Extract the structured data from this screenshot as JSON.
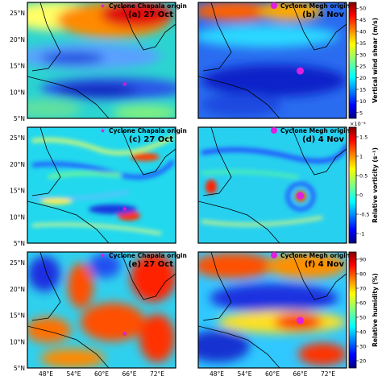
{
  "panels": [
    {
      "id": "a",
      "tag": "(a) 27 Oct",
      "legend": "Cyclone Chapala origin",
      "variable": "shear",
      "marker": "star"
    },
    {
      "id": "b",
      "tag": "(b) 4 Nov",
      "legend": "Cyclone Megh origin",
      "variable": "shear",
      "marker": "circle"
    },
    {
      "id": "c",
      "tag": "(c) 27 Oct",
      "legend": "Cyclone Chapala origin",
      "variable": "vort",
      "marker": "star"
    },
    {
      "id": "d",
      "tag": "(d) 4 Nov",
      "legend": "Cyclone Megh origin",
      "variable": "vort",
      "marker": "circle"
    },
    {
      "id": "e",
      "tag": "(e) 27 Oct",
      "legend": "Cyclone Chapala origin",
      "variable": "rh",
      "marker": "star"
    },
    {
      "id": "f",
      "tag": "(f) 4 Nov",
      "legend": "Cyclone Megh origin",
      "variable": "rh",
      "marker": "circle"
    }
  ],
  "colorbars": [
    {
      "id": "shear",
      "label": "Vertical wind shear (m/s)",
      "ticks": [
        "5",
        "10",
        "15",
        "20",
        "25",
        "30",
        "35",
        "40",
        "45",
        "50"
      ],
      "exponent": ""
    },
    {
      "id": "vort",
      "label": "Relative vorticity (s⁻¹)",
      "ticks": [
        "-1",
        "-0.5",
        "0",
        "0.5",
        "1",
        "1.5"
      ],
      "exponent": "×10⁻⁴"
    },
    {
      "id": "rh",
      "label": "Relative humidity (%)",
      "ticks": [
        "20",
        "30",
        "40",
        "50",
        "60",
        "70",
        "80",
        "90"
      ],
      "exponent": ""
    }
  ],
  "lat_ticks": [
    "25°N",
    "20°N",
    "15°N",
    "10°N",
    "5°N"
  ],
  "lon_ticks": [
    "48°E",
    "54°E",
    "60°E",
    "66°E",
    "72°E"
  ],
  "origins": {
    "chapala": {
      "name": "Cyclone Chapala origin",
      "lon": 65.0,
      "lat": 11.5,
      "color": "#d81bd6"
    },
    "megh": {
      "name": "Cyclone Megh origin",
      "lon": 66.0,
      "lat": 14.0,
      "color": "#e01ee0"
    }
  },
  "colormap": "jet",
  "map_extent": {
    "lon": [
      44,
      76
    ],
    "lat": [
      5,
      27
    ]
  }
}
